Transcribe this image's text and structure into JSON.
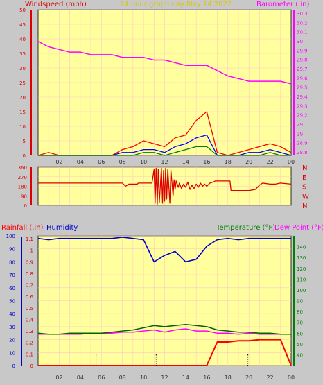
{
  "header": {
    "left_title": "Windspeed (mph)",
    "center_title": "24 hour graph day   May 14 2022",
    "right_title": "Barometer (.in)"
  },
  "colors": {
    "background": "#c8c8c8",
    "plot_bg": "#ffff9e",
    "grid": "#ffc8c8",
    "wind_speed": "#ff0000",
    "wind_avg": "#0000ff",
    "wind_low": "#008000",
    "barometer": "#ff00ff",
    "direction": "#dd0000",
    "humidity": "#0000cc",
    "temperature": "#006400",
    "dew_point": "#ff00ff",
    "rainfall": "#ff0000",
    "left_title": "#dd0000",
    "center_title": "#e0d000"
  },
  "x_tick_labels": [
    "02",
    "04",
    "06",
    "08",
    "10",
    "12",
    "14",
    "16",
    "18",
    "20",
    "22",
    "00"
  ],
  "chart_data": [
    {
      "type": "line",
      "panel": "wind_barometer",
      "title": "24 hour graph day   May 14 2022",
      "xlabel": "",
      "x": [
        "00",
        "01",
        "02",
        "03",
        "04",
        "05",
        "06",
        "07",
        "08",
        "09",
        "10",
        "11",
        "12",
        "13",
        "14",
        "15",
        "16",
        "17",
        "18",
        "19",
        "20",
        "21",
        "22",
        "23",
        "24"
      ],
      "ylim": [
        0,
        50
      ],
      "y_ticks": [
        0,
        5,
        10,
        15,
        20,
        25,
        30,
        35,
        40,
        45,
        50
      ],
      "ylabel": "Windspeed (mph)",
      "y2lim": [
        29.75,
        30.3
      ],
      "y2_ticks": [
        "28.8",
        "28.9",
        "29",
        "29.1",
        "29.2",
        "29.3",
        "29.4",
        "29.5",
        "29.6",
        "29.7",
        "29.8",
        "29.9",
        "30",
        "30.1",
        "30.2",
        "30.3"
      ],
      "y2label": "Barometer (.in)",
      "grid": true,
      "series": [
        {
          "name": "Windspeed (mph)",
          "axis": "left",
          "values": [
            0,
            1,
            0,
            0,
            0,
            0,
            0,
            0,
            2,
            3,
            5,
            4,
            3,
            6,
            7,
            12,
            15,
            1,
            0,
            1,
            2,
            3,
            4,
            3,
            1
          ]
        },
        {
          "axis": "left",
          "values": [
            0,
            0,
            0,
            0,
            0,
            0,
            0,
            0,
            1,
            1,
            2,
            2,
            1,
            3,
            4,
            6,
            7,
            0,
            0,
            0,
            1,
            1,
            2,
            1,
            0
          ]
        },
        {
          "axis": "left",
          "values": [
            0,
            0,
            0,
            0,
            0,
            0,
            0,
            0,
            0,
            0,
            1,
            1,
            0,
            1,
            2,
            3,
            3,
            0,
            0,
            0,
            0,
            0,
            1,
            0,
            0
          ]
        },
        {
          "name": "Barometer (.in)",
          "axis": "right",
          "values": [
            30.18,
            30.16,
            30.15,
            30.14,
            30.14,
            30.13,
            30.13,
            30.13,
            30.12,
            30.12,
            30.12,
            30.11,
            30.11,
            30.1,
            30.09,
            30.09,
            30.09,
            30.07,
            30.05,
            30.04,
            30.03,
            30.03,
            30.03,
            30.03,
            30.02
          ]
        }
      ]
    },
    {
      "type": "line",
      "panel": "wind_direction",
      "xlabel": "",
      "ylim": [
        0,
        360
      ],
      "y_ticks": [
        0,
        90,
        180,
        270,
        360
      ],
      "y_right_labels": [
        "N",
        "W",
        "S",
        "E",
        "N"
      ],
      "grid": true,
      "series": [
        {
          "name": "Wind direction",
          "values": [
            [
              0,
              210
            ],
            [
              8,
              210
            ],
            [
              8.3,
              180
            ],
            [
              8.6,
              200
            ],
            [
              9.4,
              200
            ],
            [
              9.5,
              210
            ],
            [
              10.8,
              210
            ],
            [
              11.0,
              340
            ],
            [
              11.1,
              20
            ],
            [
              11.2,
              350
            ],
            [
              11.3,
              10
            ],
            [
              11.4,
              340
            ],
            [
              11.5,
              30
            ],
            [
              11.7,
              350
            ],
            [
              11.8,
              20
            ],
            [
              11.9,
              330
            ],
            [
              12.0,
              40
            ],
            [
              12.1,
              350
            ],
            [
              12.2,
              60
            ],
            [
              12.3,
              340
            ],
            [
              12.5,
              20
            ],
            [
              12.6,
              330
            ],
            [
              12.8,
              90
            ],
            [
              12.9,
              240
            ],
            [
              13.0,
              150
            ],
            [
              13.1,
              230
            ],
            [
              13.3,
              170
            ],
            [
              13.4,
              210
            ],
            [
              13.6,
              160
            ],
            [
              13.8,
              200
            ],
            [
              14.0,
              170
            ],
            [
              14.2,
              220
            ],
            [
              14.4,
              150
            ],
            [
              14.6,
              190
            ],
            [
              14.8,
              160
            ],
            [
              15.0,
              200
            ],
            [
              15.2,
              170
            ],
            [
              15.4,
              210
            ],
            [
              15.6,
              180
            ],
            [
              15.8,
              200
            ],
            [
              16.0,
              180
            ],
            [
              16.3,
              210
            ],
            [
              16.6,
              220
            ],
            [
              16.8,
              230
            ],
            [
              17.2,
              230
            ],
            [
              18.2,
              230
            ],
            [
              18.3,
              140
            ],
            [
              20.0,
              140
            ],
            [
              20.6,
              150
            ],
            [
              21.0,
              190
            ],
            [
              21.3,
              210
            ],
            [
              22.0,
              200
            ],
            [
              22.5,
              200
            ],
            [
              23.0,
              210
            ],
            [
              24.0,
              200
            ]
          ]
        }
      ]
    },
    {
      "type": "line",
      "panel": "rain_humidity_temperature",
      "xlabel": "",
      "x": [
        "00",
        "01",
        "02",
        "03",
        "04",
        "05",
        "06",
        "07",
        "08",
        "09",
        "10",
        "11",
        "12",
        "13",
        "14",
        "15",
        "16",
        "17",
        "18",
        "19",
        "20",
        "21",
        "22",
        "23",
        "24"
      ],
      "ylim_rainfall": [
        0,
        1.1
      ],
      "rainfall_ticks": [
        "0",
        "0.1",
        "0.2",
        "0.3",
        "0.4",
        "0.5",
        "0.6",
        "0.7",
        "0.8",
        "0.9",
        "1",
        "1.1"
      ],
      "ylim_humidity": [
        0,
        100
      ],
      "humidity_ticks": [
        "0",
        "10",
        "20",
        "30",
        "40",
        "50",
        "60",
        "70",
        "80",
        "90",
        "100"
      ],
      "ylim_temperature": [
        30,
        150
      ],
      "temperature_ticks": [
        "40",
        "50",
        "60",
        "70",
        "80",
        "90",
        "100",
        "110",
        "120",
        "130",
        "140"
      ],
      "labels": {
        "rainfall": "Rainfall (.in)",
        "humidity": "Humidity",
        "temperature": "Temperature (°F)",
        "dew_point": "Dew Point (°F)"
      },
      "grid": true,
      "series": [
        {
          "name": "Humidity",
          "unit": "%",
          "values": [
            98,
            97,
            98,
            98,
            98,
            98,
            98,
            98,
            99,
            98,
            97,
            80,
            85,
            88,
            80,
            82,
            92,
            97,
            98,
            97,
            98,
            98,
            98,
            98,
            98
          ]
        },
        {
          "name": "Temperature (°F)",
          "unit": "°F",
          "values": [
            60,
            59,
            59,
            60,
            60,
            60,
            60,
            61,
            62,
            63,
            65,
            67,
            66,
            67,
            68,
            67,
            66,
            63,
            62,
            61,
            61,
            60,
            60,
            59,
            59
          ]
        },
        {
          "name": "Dew Point (°F)",
          "unit": "°F",
          "values": [
            59,
            59,
            59,
            59,
            59,
            60,
            60,
            60,
            61,
            61,
            62,
            63,
            61,
            63,
            64,
            62,
            62,
            60,
            60,
            59,
            60,
            59,
            59,
            59,
            59
          ]
        },
        {
          "name": "Rainfall (.in)",
          "unit": "in",
          "values": [
            0,
            0,
            0,
            0,
            0,
            0,
            0,
            0,
            0,
            0,
            0,
            0,
            0,
            0,
            0,
            0,
            0,
            0.2,
            0.2,
            0.21,
            0.21,
            0.22,
            0.22,
            0.22,
            0
          ]
        }
      ]
    }
  ]
}
